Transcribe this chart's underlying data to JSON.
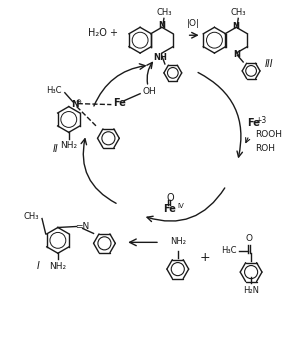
{
  "bg_color": "#ffffff",
  "line_color": "#1a1a1a",
  "figsize": [
    3.07,
    3.41
  ],
  "dpi": 100,
  "labels": {
    "H2O_plus": "H₂O +",
    "OH": "OH",
    "Fe": "Fe",
    "Fe3_sup": "+3",
    "ROOH": "ROOH",
    "ROH": "ROH",
    "FeIV_sup": "IV",
    "O_double": "O",
    "oxidant": "|O|",
    "CH3": "CH₃",
    "H3C": "H₃C",
    "NH2": "NH₂",
    "N": "N",
    "NH": "NH",
    "plus": "+",
    "label_I": "I",
    "label_II": "II",
    "label_III": "III"
  }
}
